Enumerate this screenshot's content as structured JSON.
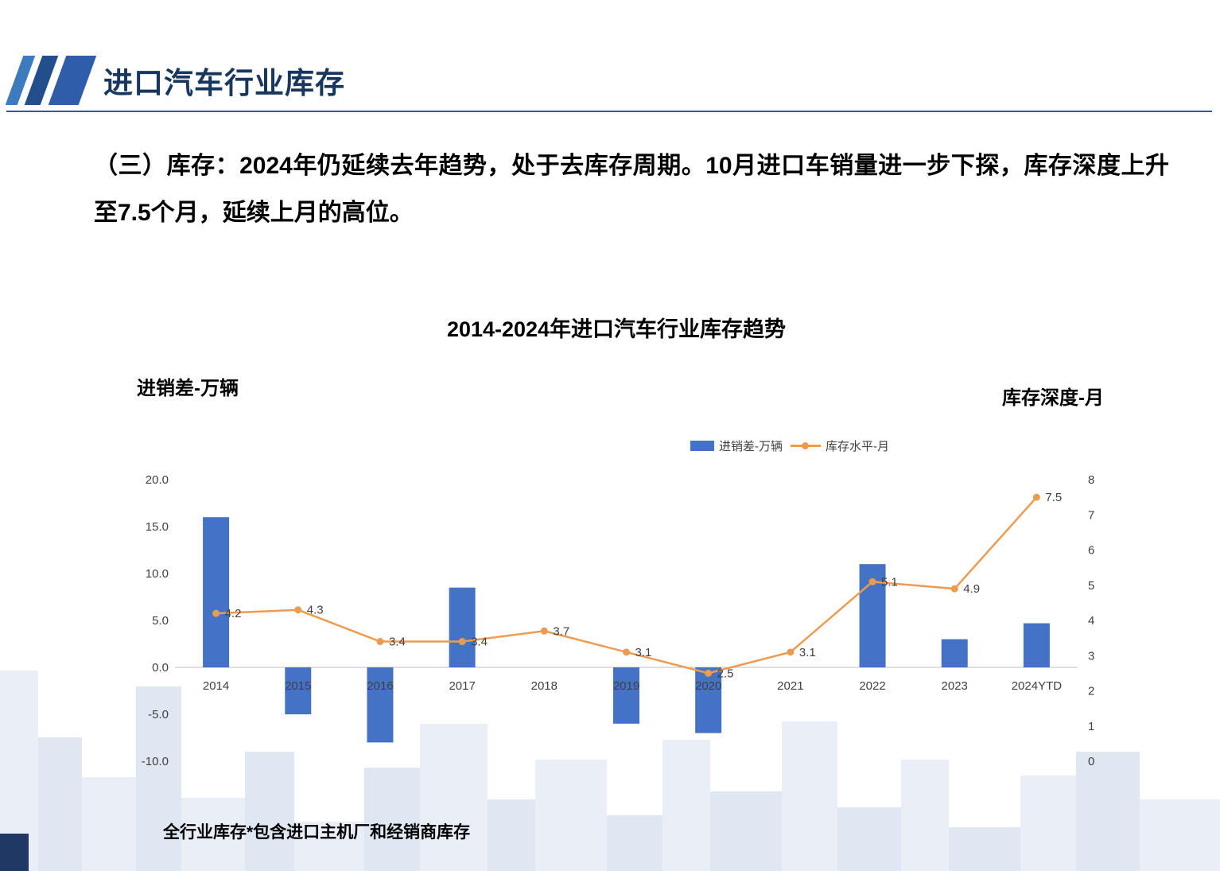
{
  "slide": {
    "header_title": "进口汽车行业库存",
    "body_text": "（三）库存：2024年仍延续去年趋势，处于去库存周期。10月进口车销量进一步下探，库存深度上升至7.5个月，延续上月的高位。",
    "footnote": "全行业库存*包含进口主机厂和经销商库存"
  },
  "colors": {
    "title": "#17375E",
    "header_rule": "#2E5D9F",
    "bar": "#4472C4",
    "line": "#ED9B51",
    "axis_text": "#404040",
    "zero_line": "#BFBFBF",
    "skyline_light": "#EAEFF7",
    "skyline_dark": "#DFE7F3",
    "corner": "#1F3864"
  },
  "chart_data": {
    "type": "bar",
    "subtype": "bar-line-combo",
    "title": "2014-2024年进口汽车行业库存趋势",
    "categories": [
      "2014",
      "2015",
      "2016",
      "2017",
      "2018",
      "2019",
      "2020",
      "2021",
      "2022",
      "2023",
      "2024YTD"
    ],
    "series": [
      {
        "name": "进销差-万辆",
        "style": "bar",
        "axis": "left",
        "color": "#4472C4",
        "values": [
          16.0,
          -5.0,
          -8.0,
          8.5,
          0,
          -6.0,
          -7.0,
          0,
          11.0,
          3.0,
          4.7
        ]
      },
      {
        "name": "库存水平-月",
        "style": "line",
        "axis": "right",
        "color": "#ED9B51",
        "data_labels": true,
        "values": [
          4.2,
          4.3,
          3.4,
          3.4,
          3.7,
          3.1,
          2.5,
          3.1,
          5.1,
          4.9,
          7.5
        ]
      }
    ],
    "left_axis": {
      "title": "进销差-万辆",
      "min": -10,
      "max": 20,
      "ticks": [
        "20.0",
        "15.0",
        "10.0",
        "5.0",
        "0.0",
        "-5.0",
        "-10.0"
      ]
    },
    "right_axis": {
      "title": "库存深度-月",
      "min": 0,
      "max": 8,
      "ticks": [
        "8",
        "7",
        "6",
        "5",
        "4",
        "3",
        "2",
        "1",
        "0"
      ]
    },
    "legend": {
      "position": "top",
      "items": [
        "进销差-万辆",
        "库存水平-月"
      ]
    },
    "grid": false
  }
}
